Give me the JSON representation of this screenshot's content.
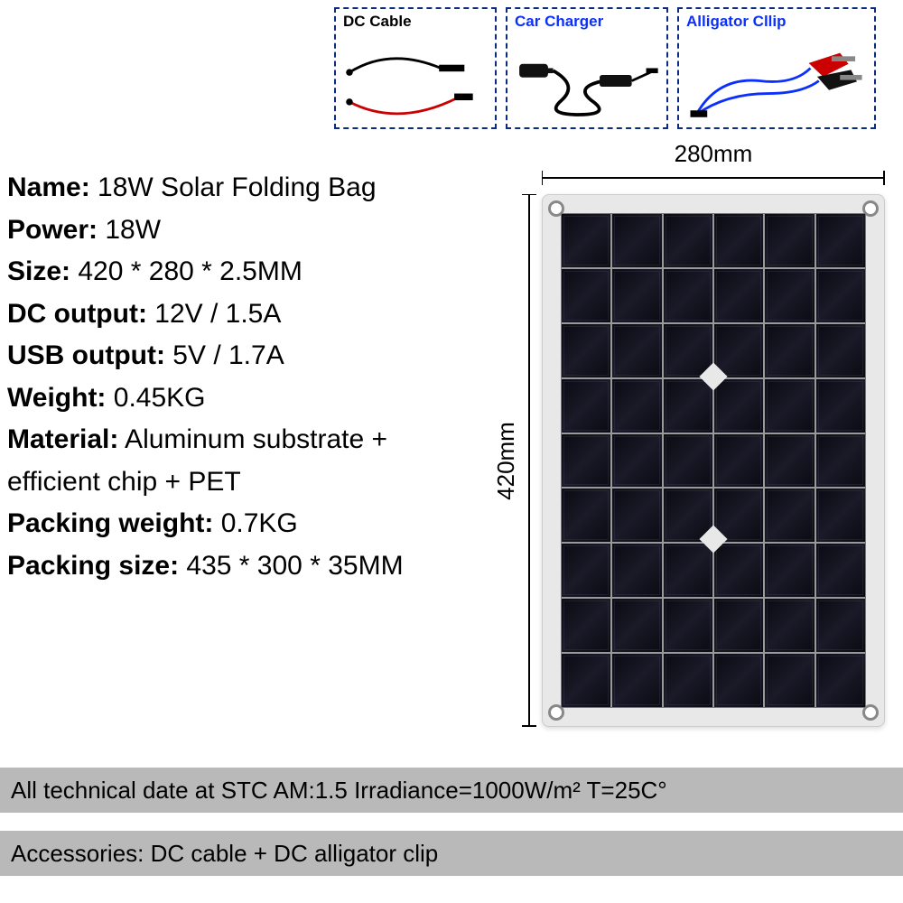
{
  "accessories": {
    "dc_cable": {
      "label": "DC Cable",
      "label_color": "#0b2b80"
    },
    "car_charger": {
      "label": "Car Charger",
      "label_color": "#0b2fff"
    },
    "alligator": {
      "label": "Alligator Cllip",
      "label_color": "#0b2fff"
    }
  },
  "specs": {
    "name_label": "Name:",
    "name_value": " 18W Solar Folding Bag",
    "power_label": "Power:",
    "power_value": " 18W",
    "size_label": "Size:",
    "size_value": " 420 * 280 * 2.5MM",
    "dc_label": "DC output:",
    "dc_value": " 12V / 1.5A",
    "usb_label": "USB output:",
    "usb_value": " 5V / 1.7A",
    "weight_label": "Weight:",
    "weight_value": " 0.45KG",
    "material_label": "Material:",
    "material_value": " Aluminum substrate + efficient chip + PET",
    "pack_weight_label": "Packing weight:",
    "pack_weight_value": " 0.7KG",
    "pack_size_label": "Packing size:",
    "pack_size_value": " 435 * 300 * 35MM"
  },
  "dimensions": {
    "width_label": "280mm",
    "height_label": "420mm"
  },
  "panel": {
    "cols": 6,
    "rows": 9,
    "cell_color_dark": "#0a0a12",
    "cell_color_mid": "#1a1a28",
    "frame_color": "#e8e8e8",
    "grid_gap_color": "#999999"
  },
  "footer": {
    "tech": "All technical date at  STC   AM:1.5   Irradiance=1000W/m²    T=25C°",
    "accessories": "Accessories: DC cable + DC alligator clip"
  },
  "colors": {
    "dashed_border": "#0b2b80",
    "bar_bg": "#b9b9b9",
    "text": "#000000"
  }
}
